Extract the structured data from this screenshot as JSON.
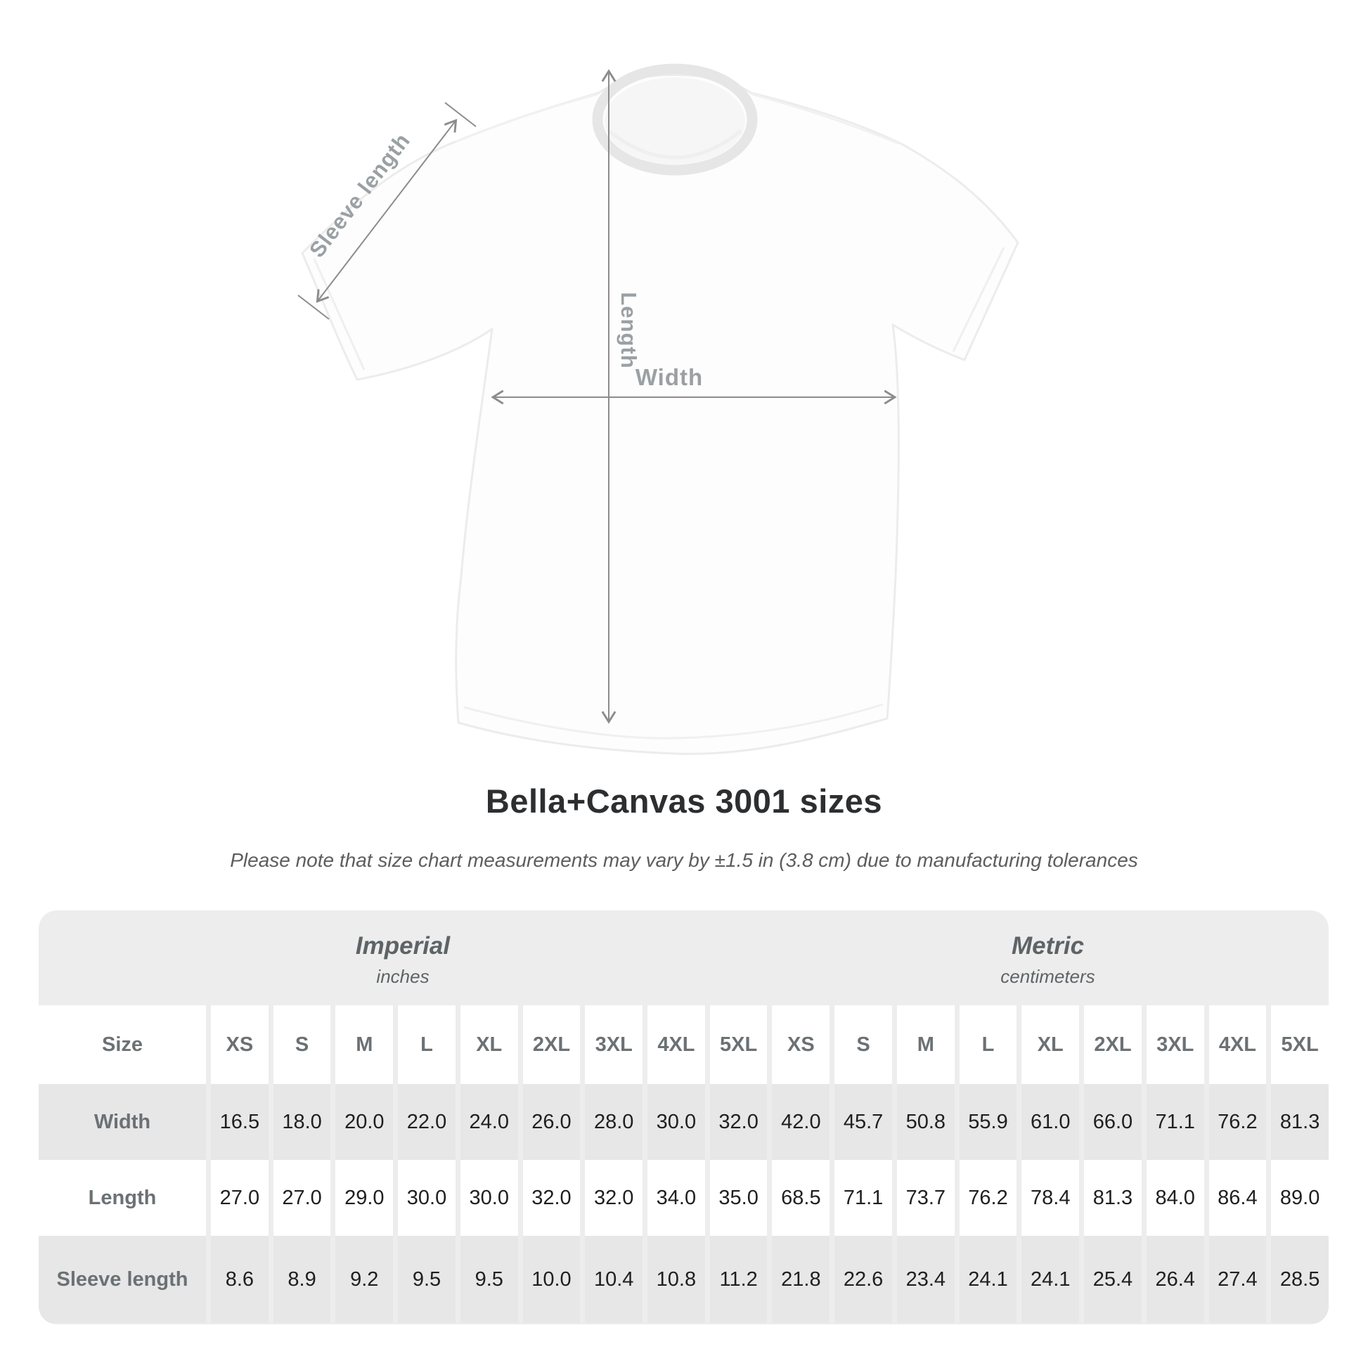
{
  "title": "Bella+Canvas 3001 sizes",
  "subtitle": "Please note that size chart measurements may vary by ±1.5 in (3.8 cm) due to manufacturing tolerances",
  "diagram": {
    "length_label": "Length",
    "width_label": "Width",
    "sleeve_label": "Sleeve length"
  },
  "table": {
    "size_header": "Size",
    "groups": [
      {
        "name": "Imperial",
        "unit": "inches"
      },
      {
        "name": "Metric",
        "unit": "centimeters"
      }
    ],
    "sizes": [
      "XS",
      "S",
      "M",
      "L",
      "XL",
      "2XL",
      "3XL",
      "4XL",
      "5XL"
    ],
    "rows": [
      {
        "label": "Width",
        "imperial": [
          "16.5",
          "18.0",
          "20.0",
          "22.0",
          "24.0",
          "26.0",
          "28.0",
          "30.0",
          "32.0"
        ],
        "metric": [
          "42.0",
          "45.7",
          "50.8",
          "55.9",
          "61.0",
          "66.0",
          "71.1",
          "76.2",
          "81.3"
        ]
      },
      {
        "label": "Length",
        "imperial": [
          "27.0",
          "27.0",
          "29.0",
          "30.0",
          "30.0",
          "32.0",
          "32.0",
          "34.0",
          "35.0"
        ],
        "metric": [
          "68.5",
          "71.1",
          "73.7",
          "76.2",
          "78.4",
          "81.3",
          "84.0",
          "86.4",
          "89.0"
        ]
      },
      {
        "label": "Sleeve length",
        "imperial": [
          "8.6",
          "8.9",
          "9.2",
          "9.5",
          "9.5",
          "10.0",
          "10.4",
          "10.8",
          "11.2"
        ],
        "metric": [
          "21.8",
          "22.6",
          "23.4",
          "24.1",
          "24.1",
          "25.4",
          "26.4",
          "27.4",
          "28.5"
        ]
      }
    ]
  },
  "chart_data": {
    "type": "table",
    "title": "Bella+Canvas 3001 sizes",
    "columns": [
      "XS",
      "S",
      "M",
      "L",
      "XL",
      "2XL",
      "3XL",
      "4XL",
      "5XL"
    ],
    "imperial_inches": {
      "Width": [
        16.5,
        18.0,
        20.0,
        22.0,
        24.0,
        26.0,
        28.0,
        30.0,
        32.0
      ],
      "Length": [
        27.0,
        27.0,
        29.0,
        30.0,
        30.0,
        32.0,
        32.0,
        34.0,
        35.0
      ],
      "Sleeve length": [
        8.6,
        8.9,
        9.2,
        9.5,
        9.5,
        10.0,
        10.4,
        10.8,
        11.2
      ]
    },
    "metric_centimeters": {
      "Width": [
        42.0,
        45.7,
        50.8,
        55.9,
        61.0,
        66.0,
        71.1,
        76.2,
        81.3
      ],
      "Length": [
        68.5,
        71.1,
        73.7,
        76.2,
        78.4,
        81.3,
        84.0,
        86.4,
        89.0
      ],
      "Sleeve length": [
        21.8,
        22.6,
        23.4,
        24.1,
        24.1,
        25.4,
        26.4,
        27.4,
        28.5
      ]
    }
  },
  "colors": {
    "annotation_line": "#8c8c8c",
    "annotation_text": "#9aa0a3",
    "table_background": "#ededed",
    "table_row_gray": "#e7e7e7",
    "label_text": "#6b7174",
    "value_text": "#1f1f1f",
    "title_text": "#2c2e30"
  }
}
